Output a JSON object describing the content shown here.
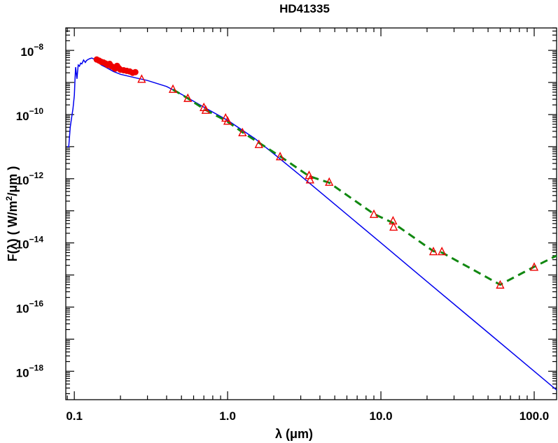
{
  "chart_data": {
    "type": "line",
    "title": "HD41335",
    "xlabel_symbol": "λ",
    "xlabel_unit": "(μm)",
    "ylabel_parts": [
      "F(λ)  ( W/m",
      "2",
      "/μm )"
    ],
    "xscale": "log",
    "yscale": "log",
    "xlim": [
      0.088,
      140
    ],
    "ylim": [
      1.3e-19,
      5e-08
    ],
    "x_ticks": [
      {
        "value": 0.1,
        "label": "0.1"
      },
      {
        "value": 1.0,
        "label": "1.0"
      },
      {
        "value": 10.0,
        "label": "10.0"
      },
      {
        "value": 100.0,
        "label": "100.0"
      }
    ],
    "y_ticks": [
      {
        "value": 1e-08,
        "base": "10",
        "exp": "−8"
      },
      {
        "value": 1e-10,
        "base": "10",
        "exp": "−10"
      },
      {
        "value": 1e-12,
        "base": "10",
        "exp": "−12"
      },
      {
        "value": 1e-14,
        "base": "10",
        "exp": "−14"
      },
      {
        "value": 1e-16,
        "base": "10",
        "exp": "−16"
      },
      {
        "value": 1e-18,
        "base": "10",
        "exp": "−18"
      }
    ],
    "grid": false,
    "colors": {
      "model": "#0000ee",
      "observed": "#ee0000",
      "fit": "#118811",
      "axes": "#000000"
    },
    "series": [
      {
        "style": "solid-blue-line",
        "x": [
          0.09,
          0.092,
          0.094,
          0.096,
          0.098,
          0.1,
          0.101,
          0.102,
          0.104,
          0.106,
          0.108,
          0.11,
          0.112,
          0.115,
          0.118,
          0.12,
          0.123,
          0.126,
          0.13,
          0.135,
          0.14,
          0.15,
          0.16,
          0.18,
          0.2,
          0.25,
          0.3,
          0.4,
          0.5,
          0.7,
          1.0,
          1.5,
          2.0,
          3.0,
          5.0,
          10.0,
          20.0,
          50.0,
          100.0,
          140.0
        ],
        "y": [
          1e-11,
          1e-11,
          4e-11,
          8e-11,
          1.5e-10,
          4e-10,
          1.2e-09,
          3e-09,
          1.3e-09,
          3.5e-09,
          3.2e-09,
          4e-09,
          3.8e-09,
          5e-09,
          4.2e-09,
          4.8e-09,
          5.2e-09,
          5.5e-09,
          5.8e-09,
          5.3e-09,
          5e-09,
          3.5e-09,
          3e-09,
          2.2e-09,
          1.8e-09,
          1.4e-09,
          1.15e-09,
          7.5e-10,
          4.3e-10,
          1.7e-10,
          6.6e-11,
          1.8e-11,
          6e-12,
          1.23e-12,
          1.6e-13,
          1e-14,
          6.2e-16,
          1.6e-17,
          1e-18,
          2.6e-19
        ]
      },
      {
        "style": "dashed-green-line",
        "x": [
          0.44,
          0.55,
          0.7,
          1.0,
          1.25,
          1.65,
          2.2,
          3.4,
          4.6,
          9,
          12,
          22,
          25,
          60,
          100,
          140
        ],
        "y": [
          6e-10,
          3.2e-10,
          1.5e-10,
          6e-11,
          2.8e-11,
          1.2e-11,
          5e-12,
          1.2e-12,
          7.5e-13,
          8e-14,
          4.2e-14,
          5.5e-15,
          5e-15,
          5e-16,
          1.8e-15,
          4e-15
        ]
      },
      {
        "style": "red-points",
        "x": [
          0.14,
          0.145,
          0.15,
          0.155,
          0.16,
          0.165,
          0.17,
          0.175,
          0.18,
          0.185,
          0.19,
          0.195,
          0.2,
          0.21,
          0.22,
          0.23,
          0.24,
          0.25
        ],
        "y": [
          5.2e-09,
          4.8e-09,
          4.4e-09,
          4.2e-09,
          3.9e-09,
          3.5e-09,
          3.8e-09,
          3.2e-09,
          3e-09,
          2.7e-09,
          3.3e-09,
          2.8e-09,
          2.5e-09,
          2.4e-09,
          2.3e-09,
          2.2e-09,
          2e-09,
          2.1e-09
        ]
      },
      {
        "style": "red-triangles",
        "x": [
          0.275,
          0.44,
          0.55,
          0.7,
          0.72,
          0.97,
          1.0,
          1.25,
          1.6,
          2.2,
          3.4,
          3.45,
          4.6,
          9,
          12,
          12.1,
          22,
          25,
          60,
          100
        ],
        "y": [
          1.3e-09,
          6.3e-10,
          3.3e-10,
          1.7e-10,
          1.4e-10,
          8e-11,
          6.4e-11,
          2.8e-11,
          1.2e-11,
          5e-12,
          1.3e-12,
          9.5e-13,
          8e-13,
          8e-14,
          5e-14,
          3.2e-14,
          5.5e-15,
          5.5e-15,
          5e-16,
          1.8e-15
        ]
      }
    ]
  }
}
